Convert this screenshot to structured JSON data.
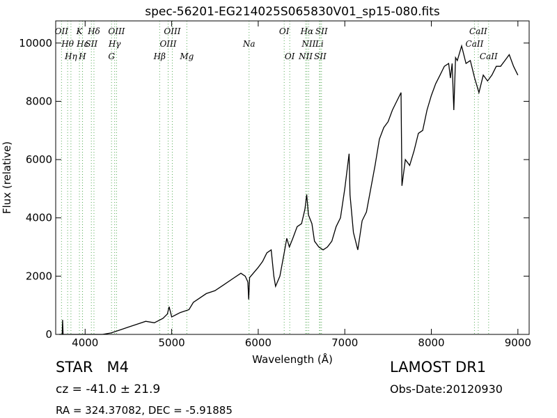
{
  "chart_data": {
    "type": "line",
    "title": "spec-56201-EG214025S065830V01_sp15-080.fits",
    "xlabel": "Wavelength (Å)",
    "ylabel": "Flux (relative)",
    "color": "#000000",
    "xlim": [
      3660,
      9130
    ],
    "ylim": [
      0,
      10760
    ],
    "xticks": [
      4000,
      5000,
      6000,
      7000,
      8000,
      9000
    ],
    "yticks": [
      0,
      2000,
      4000,
      6000,
      8000,
      10000
    ],
    "line_color": "#55aa55",
    "lines": [
      {
        "label": "OII",
        "x": 3727
      },
      {
        "label": "Hθ",
        "x": 3798
      },
      {
        "label": "Hη",
        "x": 3836
      },
      {
        "label": "K",
        "x": 3934
      },
      {
        "label": "Hε",
        "x": 3970
      },
      {
        "label": "H",
        "x": 3969
      },
      {
        "label": "Hδ",
        "x": 4102
      },
      {
        "label": "SII",
        "x": 4072
      },
      {
        "label": "G",
        "x": 4305
      },
      {
        "label": "OIII",
        "x": 4363
      },
      {
        "label": "Hγ",
        "x": 4341
      },
      {
        "label": "Hβ",
        "x": 4861
      },
      {
        "label": "OIII",
        "x": 5007
      },
      {
        "label": "OIII",
        "x": 4959
      },
      {
        "label": "Mg",
        "x": 5175
      },
      {
        "label": "OI",
        "x": 6300
      },
      {
        "label": "Na",
        "x": 5894
      },
      {
        "label": "OI",
        "x": 6364
      },
      {
        "label": "Hα",
        "x": 6563
      },
      {
        "label": "NII",
        "x": 6583
      },
      {
        "label": "NII",
        "x": 6548
      },
      {
        "label": "SII",
        "x": 6731
      },
      {
        "label": "Li",
        "x": 6707
      },
      {
        "label": "SII",
        "x": 6716
      },
      {
        "label": "CaII",
        "x": 8542
      },
      {
        "label": "CaII",
        "x": 8498
      },
      {
        "label": "CaII",
        "x": 8662
      }
    ],
    "x": [
      3700,
      3735,
      3740,
      3745,
      3800,
      4000,
      4200,
      4300,
      4400,
      4500,
      4600,
      4700,
      4800,
      4900,
      4950,
      4970,
      5000,
      5100,
      5200,
      5250,
      5300,
      5400,
      5500,
      5600,
      5700,
      5800,
      5850,
      5880,
      5890,
      5900,
      6000,
      6050,
      6100,
      6150,
      6180,
      6200,
      6250,
      6300,
      6330,
      6360,
      6400,
      6450,
      6500,
      6540,
      6560,
      6580,
      6620,
      6650,
      6700,
      6750,
      6800,
      6850,
      6900,
      6950,
      7000,
      7050,
      7060,
      7100,
      7150,
      7200,
      7250,
      7300,
      7350,
      7400,
      7450,
      7500,
      7550,
      7600,
      7650,
      7660,
      7700,
      7750,
      7800,
      7850,
      7900,
      7950,
      8000,
      8050,
      8100,
      8150,
      8200,
      8220,
      8240,
      8260,
      8280,
      8300,
      8350,
      8400,
      8450,
      8500,
      8550,
      8600,
      8650,
      8700,
      8750,
      8800,
      8850,
      8900,
      8950,
      9000
    ],
    "values": [
      0,
      0,
      500,
      0,
      0,
      0,
      0,
      50,
      150,
      250,
      350,
      450,
      400,
      550,
      700,
      950,
      600,
      750,
      850,
      1100,
      1200,
      1400,
      1500,
      1700,
      1900,
      2100,
      2000,
      1800,
      1200,
      1950,
      2300,
      2500,
      2800,
      2900,
      2000,
      1650,
      2000,
      2800,
      3300,
      3000,
      3300,
      3700,
      3800,
      4300,
      4800,
      4100,
      3800,
      3200,
      3000,
      2900,
      3000,
      3200,
      3700,
      4000,
      5000,
      6200,
      4800,
      3500,
      2900,
      3900,
      4200,
      5000,
      5800,
      6700,
      7100,
      7300,
      7700,
      8000,
      8300,
      5100,
      6000,
      5800,
      6300,
      6900,
      7000,
      7700,
      8200,
      8600,
      8900,
      9200,
      9300,
      8800,
      9300,
      7700,
      9500,
      9400,
      9900,
      9300,
      9400,
      8800,
      8300,
      8900,
      8700,
      8900,
      9200,
      9200,
      9400,
      9600,
      9200,
      8900
    ]
  },
  "footer": {
    "object": "STAR   M4",
    "cz": "cz = -41.0 ± 21.9",
    "coords": "RA = 324.37082, DEC = -5.91885",
    "survey": "LAMOST DR1",
    "date": "Obs-Date:20120930"
  }
}
